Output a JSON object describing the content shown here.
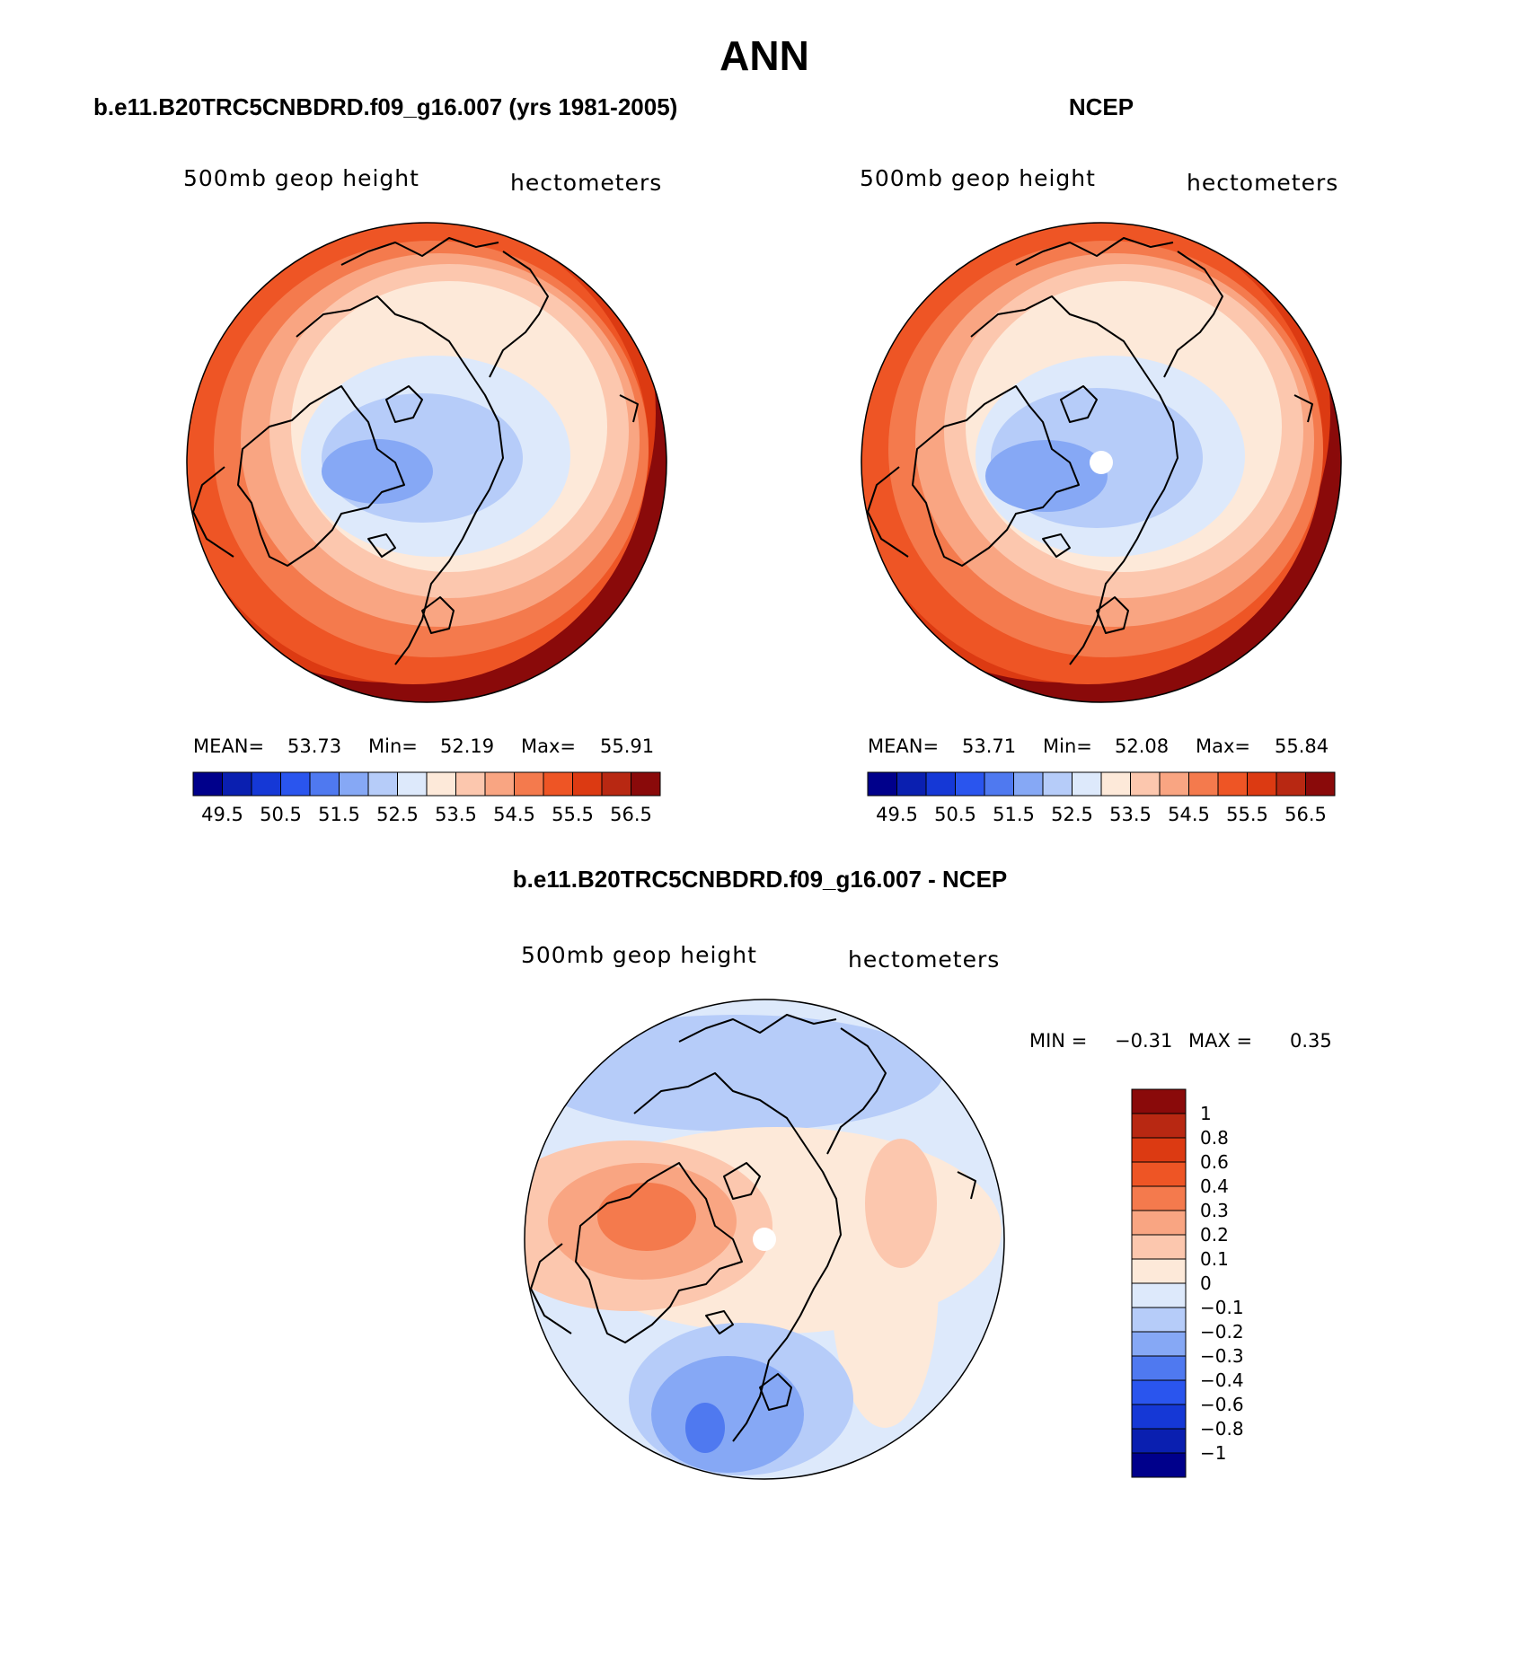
{
  "figure_title": "ANN",
  "panels": [
    {
      "id": "model",
      "header": "b.e11.B20TRC5CNBDRD.f09_g16.007 (yrs 1981-2005)",
      "variable": "500mb geop height",
      "units": "hectometers",
      "stats": {
        "mean_label": "MEAN=",
        "mean": "53.73",
        "min_label": "Min=",
        "min": "52.19",
        "max_label": "Max=",
        "max": "55.91"
      },
      "pole_hole": false
    },
    {
      "id": "obs",
      "header": "NCEP",
      "variable": "500mb geop height",
      "units": "hectometers",
      "stats": {
        "mean_label": "MEAN=",
        "mean": "53.71",
        "min_label": "Min=",
        "min": "52.08",
        "max_label": "Max=",
        "max": "55.84"
      },
      "pole_hole": true
    },
    {
      "id": "diff",
      "header": "b.e11.B20TRC5CNBDRD.f09_g16.007 - NCEP",
      "variable": "500mb geop height",
      "units": "hectometers",
      "stats": {
        "min_label": "MIN =",
        "min": "−0.31",
        "max_label": "MAX =",
        "max": "0.35"
      },
      "pole_hole": true
    }
  ],
  "colorbar_abs": {
    "labels": [
      "49.5",
      "50.5",
      "51.5",
      "52.5",
      "53.5",
      "54.5",
      "55.5",
      "56.5"
    ],
    "colors": [
      "#00008b",
      "#0a1fb0",
      "#1538d6",
      "#2a55ee",
      "#4f79f0",
      "#86a8f5",
      "#b6ccf9",
      "#dde9fb",
      "#fde9d9",
      "#fcc7ae",
      "#f9a582",
      "#f47a4d",
      "#ee5525",
      "#dc3a12",
      "#b82812",
      "#8a0a0a"
    ]
  },
  "colorbar_diff": {
    "labels": [
      "1",
      "0.8",
      "0.6",
      "0.4",
      "0.3",
      "0.2",
      "0.1",
      "0",
      "−0.1",
      "−0.2",
      "−0.3",
      "−0.4",
      "−0.6",
      "−0.8",
      "−1"
    ],
    "colors": [
      "#8a0a0a",
      "#b82812",
      "#dc3a12",
      "#ee5525",
      "#f47a4d",
      "#f9a582",
      "#fcc7ae",
      "#fde9d9",
      "#dde9fb",
      "#b6ccf9",
      "#86a8f5",
      "#4f79f0",
      "#2a55ee",
      "#1538d6",
      "#0a1fb0",
      "#00008b"
    ]
  },
  "colors": {
    "ocean_line": "#000000",
    "pole_marker": "#ffffff"
  }
}
